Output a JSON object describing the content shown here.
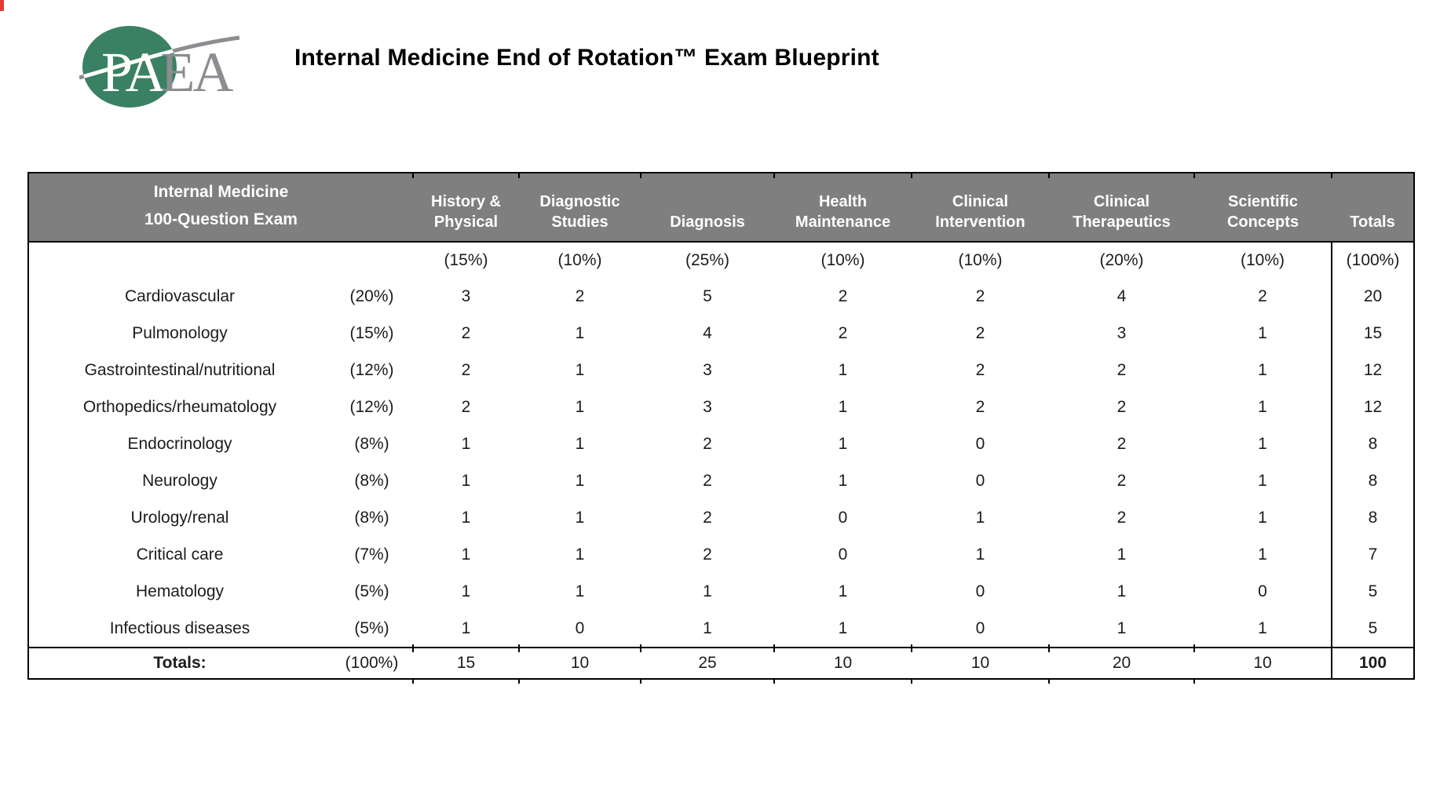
{
  "logo": {
    "text_green_part": "PA",
    "text_gray_part": "EA",
    "circle_color": "#3a8164",
    "gray_color": "#8b8d90"
  },
  "title": "Internal Medicine End of Rotation™ Exam Blueprint",
  "table": {
    "header": {
      "exam_line1": "Internal Medicine",
      "exam_line2": "100-Question Exam",
      "columns": [
        {
          "line1": "History &",
          "line2": "Physical"
        },
        {
          "line1": "Diagnostic",
          "line2": "Studies"
        },
        {
          "line1": "",
          "line2": "Diagnosis"
        },
        {
          "line1": "Health",
          "line2": "Maintenance"
        },
        {
          "line1": "Clinical",
          "line2": "Intervention"
        },
        {
          "line1": "Clinical",
          "line2": "Therapeutics"
        },
        {
          "line1": "Scientific",
          "line2": "Concepts"
        }
      ],
      "totals_label": "Totals",
      "header_bg": "#7f7f7f",
      "header_text_color": "#ffffff"
    },
    "percent_row": {
      "values": [
        "(15%)",
        "(10%)",
        "(25%)",
        "(10%)",
        "(10%)",
        "(20%)",
        "(10%)"
      ],
      "total": "(100%)"
    },
    "rows": [
      {
        "label": "Cardiovascular",
        "pct": "(20%)",
        "values": [
          3,
          2,
          5,
          2,
          2,
          4,
          2
        ],
        "total": 20
      },
      {
        "label": "Pulmonology",
        "pct": "(15%)",
        "values": [
          2,
          1,
          4,
          2,
          2,
          3,
          1
        ],
        "total": 15
      },
      {
        "label": "Gastrointestinal/nutritional",
        "pct": "(12%)",
        "values": [
          2,
          1,
          3,
          1,
          2,
          2,
          1
        ],
        "total": 12
      },
      {
        "label": "Orthopedics/rheumatology",
        "pct": "(12%)",
        "values": [
          2,
          1,
          3,
          1,
          2,
          2,
          1
        ],
        "total": 12
      },
      {
        "label": "Endocrinology",
        "pct": "(8%)",
        "values": [
          1,
          1,
          2,
          1,
          0,
          2,
          1
        ],
        "total": 8
      },
      {
        "label": "Neurology",
        "pct": "(8%)",
        "values": [
          1,
          1,
          2,
          1,
          0,
          2,
          1
        ],
        "total": 8
      },
      {
        "label": "Urology/renal",
        "pct": "(8%)",
        "values": [
          1,
          1,
          2,
          0,
          1,
          2,
          1
        ],
        "total": 8
      },
      {
        "label": "Critical care",
        "pct": "(7%)",
        "values": [
          1,
          1,
          2,
          0,
          1,
          1,
          1
        ],
        "total": 7
      },
      {
        "label": "Hematology",
        "pct": "(5%)",
        "values": [
          1,
          1,
          1,
          1,
          0,
          1,
          0
        ],
        "total": 5
      },
      {
        "label": "Infectious diseases",
        "pct": "(5%)",
        "values": [
          1,
          0,
          1,
          1,
          0,
          1,
          1
        ],
        "total": 5
      }
    ],
    "totals_row": {
      "label": "Totals:",
      "pct": "(100%)",
      "values": [
        15,
        10,
        25,
        10,
        10,
        20,
        10
      ],
      "total": 100
    }
  }
}
